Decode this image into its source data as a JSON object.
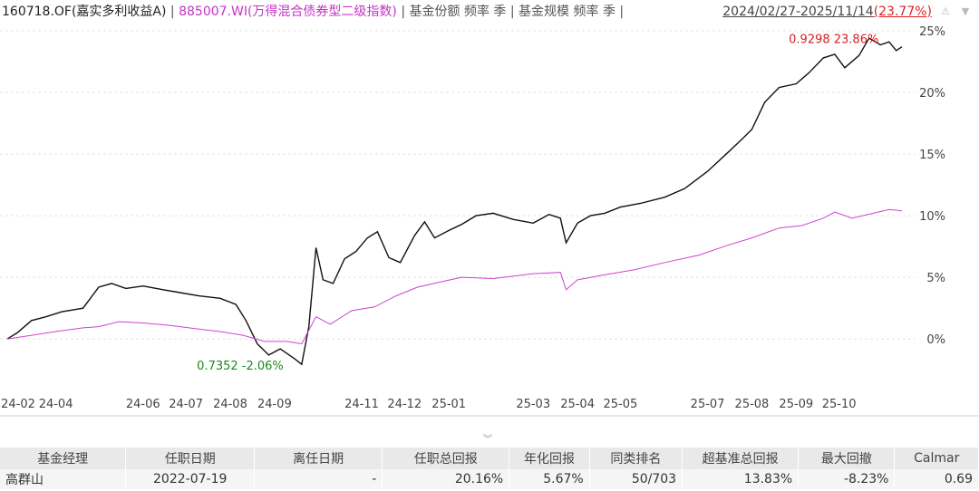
{
  "header": {
    "fund_code_name": "160718.OF(嘉实多利收益A)",
    "index_code_name": "885007.WI(万得混合债券型二级指数)",
    "share_label": "基金份额 频率 季",
    "scale_label": "基金规模 频率 季",
    "date_range": "2024/02/27-2025/11/14",
    "range_return": "(23.77%)",
    "icons": [
      "warning-icon",
      "chevron-down-icon"
    ]
  },
  "colors": {
    "fund": "#111111",
    "index": "#cc44cc",
    "max": "#d81e1e",
    "min": "#1a8a1a",
    "grid": "#e4e4e4"
  },
  "chart_data": {
    "type": "line",
    "ylim": [
      -3,
      25
    ],
    "y_ticks": [
      0,
      5,
      10,
      15,
      20,
      25
    ],
    "y_tick_labels": [
      "0%",
      "5%",
      "10%",
      "15%",
      "20%",
      "25%"
    ],
    "x_range": [
      "2024-02-27",
      "2025-11-14"
    ],
    "x_ticks": [
      "2024-02-01",
      "2024-04-01",
      "2024-06-01",
      "2024-07-01",
      "2024-08-01",
      "2024-09-01",
      "2024-11-01",
      "2024-12-01",
      "2025-01-01",
      "2025-03-01",
      "2025-04-01",
      "2025-05-01",
      "2025-07-01",
      "2025-08-01",
      "2025-09-01",
      "2025-10-01"
    ],
    "x_tick_labels": [
      "24-02",
      "24-04",
      "24-06",
      "24-07",
      "24-08",
      "24-09",
      "24-11",
      "24-12",
      "25-01",
      "25-03",
      "25-04",
      "25-05",
      "25-07",
      "25-08",
      "25-09",
      "25-10"
    ],
    "grid": true,
    "series": [
      {
        "name": "160718.OF(嘉实多利收益A)",
        "points": [
          [
            "2024-02-27",
            0
          ],
          [
            "2024-03-05",
            0.5
          ],
          [
            "2024-03-15",
            1.5
          ],
          [
            "2024-03-25",
            1.8
          ],
          [
            "2024-04-05",
            2.2
          ],
          [
            "2024-04-20",
            2.5
          ],
          [
            "2024-05-01",
            4.2
          ],
          [
            "2024-05-10",
            4.5
          ],
          [
            "2024-05-20",
            4.1
          ],
          [
            "2024-06-01",
            4.3
          ],
          [
            "2024-06-15",
            4.0
          ],
          [
            "2024-06-25",
            3.8
          ],
          [
            "2024-07-10",
            3.5
          ],
          [
            "2024-07-25",
            3.3
          ],
          [
            "2024-08-05",
            2.8
          ],
          [
            "2024-08-12",
            1.5
          ],
          [
            "2024-08-20",
            -0.4
          ],
          [
            "2024-08-28",
            -1.3
          ],
          [
            "2024-09-05",
            -0.8
          ],
          [
            "2024-09-15",
            -1.6
          ],
          [
            "2024-09-20",
            -2.06
          ],
          [
            "2024-09-25",
            1.0
          ],
          [
            "2024-09-28",
            4.8
          ],
          [
            "2024-09-30",
            7.4
          ],
          [
            "2024-10-05",
            4.8
          ],
          [
            "2024-10-12",
            4.5
          ],
          [
            "2024-10-20",
            6.5
          ],
          [
            "2024-10-28",
            7.1
          ],
          [
            "2024-11-05",
            8.2
          ],
          [
            "2024-11-12",
            8.7
          ],
          [
            "2024-11-20",
            6.6
          ],
          [
            "2024-11-28",
            6.2
          ],
          [
            "2024-12-08",
            8.4
          ],
          [
            "2024-12-15",
            9.5
          ],
          [
            "2024-12-22",
            8.2
          ],
          [
            "2025-01-01",
            8.8
          ],
          [
            "2025-01-10",
            9.3
          ],
          [
            "2025-01-20",
            10.0
          ],
          [
            "2025-02-01",
            10.2
          ],
          [
            "2025-02-15",
            9.7
          ],
          [
            "2025-03-01",
            9.4
          ],
          [
            "2025-03-12",
            10.1
          ],
          [
            "2025-03-20",
            9.8
          ],
          [
            "2025-03-24",
            7.8
          ],
          [
            "2025-04-01",
            9.4
          ],
          [
            "2025-04-10",
            10.0
          ],
          [
            "2025-04-20",
            10.2
          ],
          [
            "2025-05-01",
            10.7
          ],
          [
            "2025-05-15",
            11.0
          ],
          [
            "2025-06-01",
            11.5
          ],
          [
            "2025-06-15",
            12.2
          ],
          [
            "2025-07-01",
            13.6
          ],
          [
            "2025-07-15",
            15.1
          ],
          [
            "2025-07-25",
            16.2
          ],
          [
            "2025-08-01",
            17.0
          ],
          [
            "2025-08-10",
            19.2
          ],
          [
            "2025-08-20",
            20.4
          ],
          [
            "2025-09-01",
            20.7
          ],
          [
            "2025-09-10",
            21.6
          ],
          [
            "2025-09-20",
            22.8
          ],
          [
            "2025-09-28",
            23.1
          ],
          [
            "2025-10-05",
            22.0
          ],
          [
            "2025-10-15",
            23.0
          ],
          [
            "2025-10-22",
            24.4
          ],
          [
            "2025-10-30",
            23.86
          ],
          [
            "2025-11-05",
            24.1
          ],
          [
            "2025-11-10",
            23.4
          ],
          [
            "2025-11-14",
            23.7
          ]
        ]
      },
      {
        "name": "885007.WI(万得混合债券型二级指数)",
        "points": [
          [
            "2024-02-27",
            0
          ],
          [
            "2024-03-15",
            0.3
          ],
          [
            "2024-04-01",
            0.6
          ],
          [
            "2024-04-20",
            0.9
          ],
          [
            "2024-05-01",
            1.0
          ],
          [
            "2024-05-15",
            1.4
          ],
          [
            "2024-06-01",
            1.3
          ],
          [
            "2024-06-20",
            1.1
          ],
          [
            "2024-07-10",
            0.8
          ],
          [
            "2024-07-25",
            0.6
          ],
          [
            "2024-08-10",
            0.3
          ],
          [
            "2024-08-25",
            -0.2
          ],
          [
            "2024-09-10",
            -0.2
          ],
          [
            "2024-09-20",
            -0.4
          ],
          [
            "2024-09-30",
            1.8
          ],
          [
            "2024-10-10",
            1.2
          ],
          [
            "2024-10-25",
            2.3
          ],
          [
            "2024-11-10",
            2.6
          ],
          [
            "2024-11-25",
            3.5
          ],
          [
            "2024-12-10",
            4.2
          ],
          [
            "2024-12-25",
            4.6
          ],
          [
            "2025-01-10",
            5.0
          ],
          [
            "2025-02-01",
            4.9
          ],
          [
            "2025-03-01",
            5.3
          ],
          [
            "2025-03-20",
            5.4
          ],
          [
            "2025-03-24",
            4.0
          ],
          [
            "2025-04-01",
            4.8
          ],
          [
            "2025-04-20",
            5.2
          ],
          [
            "2025-05-10",
            5.6
          ],
          [
            "2025-06-01",
            6.2
          ],
          [
            "2025-06-25",
            6.8
          ],
          [
            "2025-07-15",
            7.6
          ],
          [
            "2025-08-01",
            8.2
          ],
          [
            "2025-08-20",
            9.0
          ],
          [
            "2025-09-05",
            9.2
          ],
          [
            "2025-09-20",
            9.8
          ],
          [
            "2025-09-28",
            10.3
          ],
          [
            "2025-10-10",
            9.8
          ],
          [
            "2025-10-25",
            10.2
          ],
          [
            "2025-11-05",
            10.5
          ],
          [
            "2025-11-14",
            10.4
          ]
        ]
      }
    ],
    "annotations": {
      "max": {
        "date": "2025-10-30",
        "value": 23.86,
        "label": "0.9298 23.86%"
      },
      "min": {
        "date": "2024-09-20",
        "value": -2.06,
        "label": "0.7352 -2.06%"
      }
    }
  },
  "table": {
    "headers": [
      "基金经理",
      "任职日期",
      "离任日期",
      "任职总回报",
      "年化回报",
      "同类排名",
      "超基准总回报",
      "最大回撤",
      "Calmar"
    ],
    "rows": [
      [
        "高群山",
        "2022-07-19",
        "-",
        "20.16%",
        "5.67%",
        "50/703",
        "13.83%",
        "-8.23%",
        "0.69"
      ]
    ]
  }
}
